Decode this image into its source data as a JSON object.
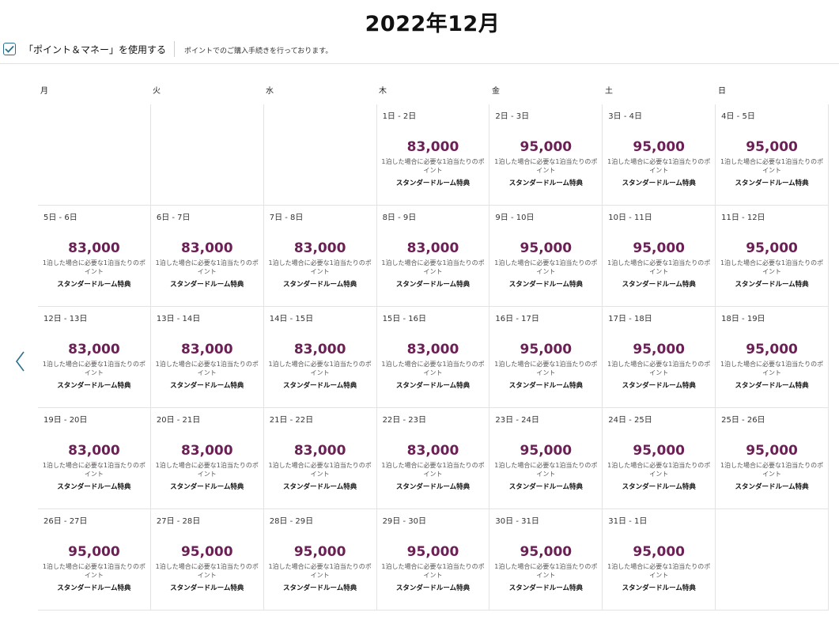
{
  "calendar": {
    "month_title": "2022年12月",
    "use_points_money_label": "「ポイント＆マネー」を使用する",
    "use_points_money_checked": true,
    "points_note": "ポイントでのご購入手続きを行っております。",
    "weekdays": [
      "月",
      "火",
      "水",
      "木",
      "金",
      "土",
      "日"
    ],
    "points_note_per_night": "1泊した場合に必要な1泊当たりのポイント",
    "room_type": "スタンダードルーム特典",
    "prev_icon": "chevron-left-icon",
    "accent_color": "#6b1f55",
    "weeks": [
      [
        {
          "date": ""
        },
        {
          "date": ""
        },
        {
          "date": ""
        },
        {
          "date": "1日 - 2日",
          "points": "83,000"
        },
        {
          "date": "2日 - 3日",
          "points": "95,000"
        },
        {
          "date": "3日 - 4日",
          "points": "95,000"
        },
        {
          "date": "4日 - 5日",
          "points": "95,000"
        }
      ],
      [
        {
          "date": "5日 - 6日",
          "points": "83,000"
        },
        {
          "date": "6日 - 7日",
          "points": "83,000"
        },
        {
          "date": "7日 - 8日",
          "points": "83,000"
        },
        {
          "date": "8日 - 9日",
          "points": "83,000"
        },
        {
          "date": "9日 - 10日",
          "points": "95,000"
        },
        {
          "date": "10日 - 11日",
          "points": "95,000"
        },
        {
          "date": "11日 - 12日",
          "points": "95,000"
        }
      ],
      [
        {
          "date": "12日 - 13日",
          "points": "83,000"
        },
        {
          "date": "13日 - 14日",
          "points": "83,000"
        },
        {
          "date": "14日 - 15日",
          "points": "83,000"
        },
        {
          "date": "15日 - 16日",
          "points": "83,000"
        },
        {
          "date": "16日 - 17日",
          "points": "95,000"
        },
        {
          "date": "17日 - 18日",
          "points": "95,000"
        },
        {
          "date": "18日 - 19日",
          "points": "95,000"
        }
      ],
      [
        {
          "date": "19日 - 20日",
          "points": "83,000"
        },
        {
          "date": "20日 - 21日",
          "points": "83,000"
        },
        {
          "date": "21日 - 22日",
          "points": "83,000"
        },
        {
          "date": "22日 - 23日",
          "points": "83,000"
        },
        {
          "date": "23日 - 24日",
          "points": "95,000"
        },
        {
          "date": "24日 - 25日",
          "points": "95,000"
        },
        {
          "date": "25日 - 26日",
          "points": "95,000"
        }
      ],
      [
        {
          "date": "26日 - 27日",
          "points": "95,000"
        },
        {
          "date": "27日 - 28日",
          "points": "95,000"
        },
        {
          "date": "28日 - 29日",
          "points": "95,000"
        },
        {
          "date": "29日 - 30日",
          "points": "95,000"
        },
        {
          "date": "30日 - 31日",
          "points": "95,000"
        },
        {
          "date": "31日 - 1日",
          "points": "95,000"
        },
        {
          "date": ""
        }
      ]
    ]
  }
}
